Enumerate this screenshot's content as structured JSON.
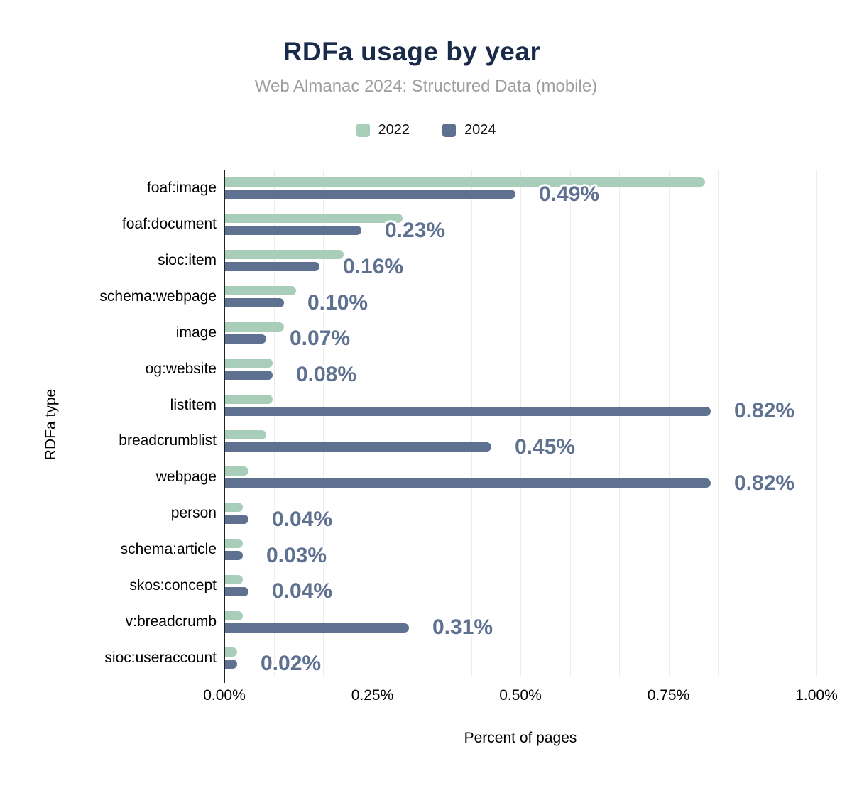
{
  "header": {
    "title": "RDFa usage by year",
    "subtitle": "Web Almanac 2024: Structured Data (mobile)"
  },
  "legend": [
    {
      "label": "2022",
      "color": "#a8cdb9"
    },
    {
      "label": "2024",
      "color": "#5e7191"
    }
  ],
  "axes": {
    "xlabel": "Percent of pages",
    "ylabel": "RDFa type",
    "xticks": [
      "0.00%",
      "0.25%",
      "0.50%",
      "0.75%",
      "1.00%"
    ]
  },
  "chart_data": {
    "type": "bar",
    "orientation": "horizontal",
    "title": "RDFa usage by year",
    "subtitle": "Web Almanac 2024: Structured Data (mobile)",
    "xlabel": "Percent of pages",
    "ylabel": "RDFa type",
    "xlim": [
      0,
      1.0
    ],
    "xtick_labels": [
      "0.00%",
      "0.25%",
      "0.50%",
      "0.75%",
      "1.00%"
    ],
    "grid": "vertical, minor gridlines every 0.0833%",
    "legend_position": "top-center",
    "categories": [
      "foaf:image",
      "foaf:document",
      "sioc:item",
      "schema:webpage",
      "image",
      "og:website",
      "listitem",
      "breadcrumblist",
      "webpage",
      "person",
      "schema:article",
      "skos:concept",
      "v:breadcrumb",
      "sioc:useraccount"
    ],
    "series": [
      {
        "name": "2022",
        "color": "#a8cdb9",
        "values": [
          0.81,
          0.3,
          0.2,
          0.12,
          0.1,
          0.08,
          0.08,
          0.07,
          0.04,
          0.03,
          0.03,
          0.03,
          0.03,
          0.02
        ],
        "labels": null
      },
      {
        "name": "2024",
        "color": "#5e7191",
        "values": [
          0.49,
          0.23,
          0.16,
          0.1,
          0.07,
          0.08,
          0.82,
          0.45,
          0.82,
          0.04,
          0.03,
          0.04,
          0.31,
          0.02
        ],
        "labels": [
          "0.49%",
          "0.23%",
          "0.16%",
          "0.10%",
          "0.07%",
          "0.08%",
          "0.82%",
          "0.45%",
          "0.82%",
          "0.04%",
          "0.03%",
          "0.04%",
          "0.31%",
          "0.02%"
        ]
      }
    ]
  },
  "colors": {
    "title": "#1a2b49",
    "subtitle": "#9e9e9e",
    "series_2022": "#a8cdb9",
    "series_2024": "#5e7191",
    "value_label": "#5e7191",
    "gridline": "#ececec",
    "axis_line": "#212121",
    "background": "#ffffff"
  }
}
